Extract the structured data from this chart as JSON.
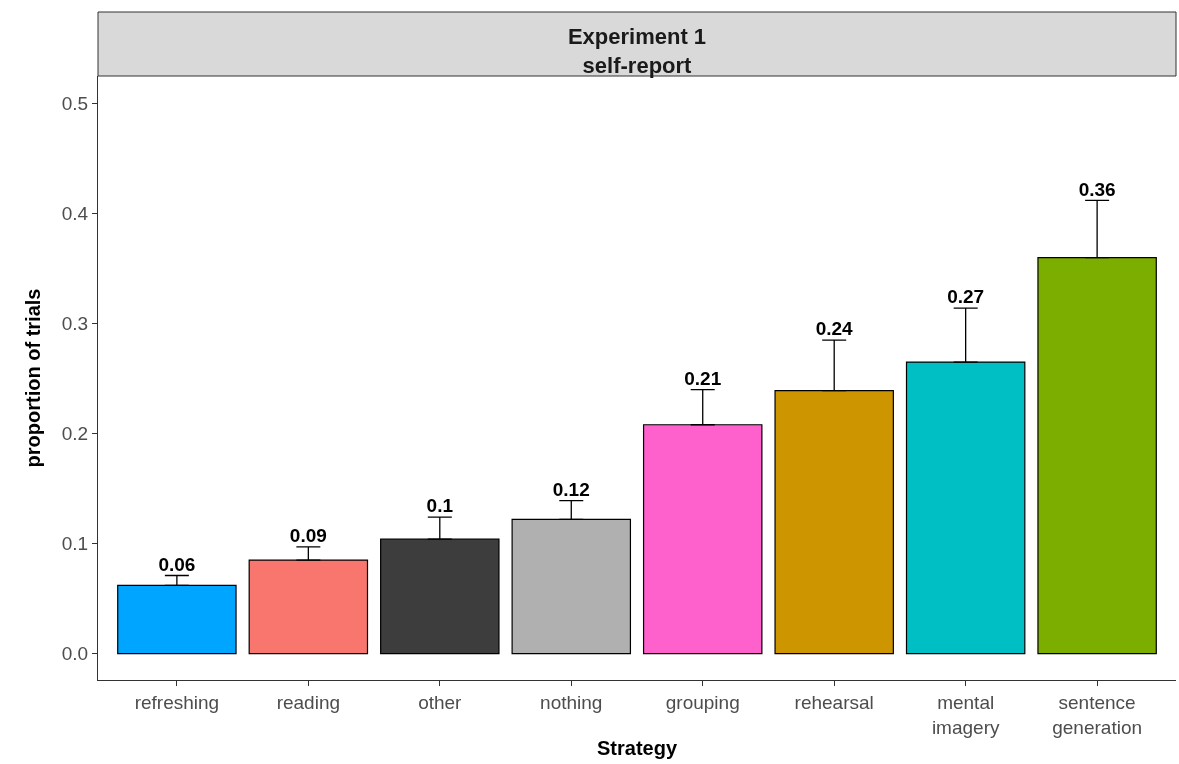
{
  "chart_data": {
    "type": "bar",
    "title": "Experiment 1\nself-report",
    "xlabel": "Strategy",
    "ylabel": "proportion of trials",
    "categories": [
      "refreshing",
      "reading",
      "other",
      "nothing",
      "grouping",
      "rehearsal",
      "mental imagery",
      "sentence generation"
    ],
    "values": [
      0.062,
      0.085,
      0.104,
      0.122,
      0.208,
      0.239,
      0.265,
      0.36
    ],
    "errors": [
      [
        0.062,
        0.071
      ],
      [
        0.085,
        0.097
      ],
      [
        0.104,
        0.124
      ],
      [
        0.122,
        0.139
      ],
      [
        0.208,
        0.24
      ],
      [
        0.239,
        0.285
      ],
      [
        0.265,
        0.314
      ],
      [
        0.36,
        0.412
      ]
    ],
    "value_labels": [
      "0.06",
      "0.09",
      "0.1",
      "0.12",
      "0.21",
      "0.24",
      "0.27",
      "0.36"
    ],
    "colors": [
      "#00a5ff",
      "#f8766d",
      "#3d3d3d",
      "#b0b0b0",
      "#ff61cc",
      "#cd9600",
      "#00bfc4",
      "#7cae00"
    ],
    "ylim": [
      -0.024,
      0.525
    ],
    "yticks": [
      {
        "value": 0,
        "label": "0.0"
      },
      0.1,
      0.2,
      0.3,
      0.4,
      0.5
    ]
  }
}
